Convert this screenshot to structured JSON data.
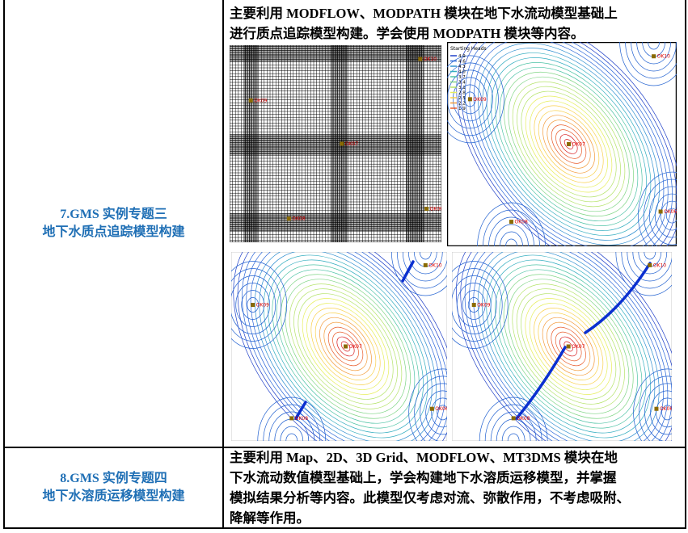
{
  "table": {
    "rows": [
      {
        "topic": [
          "7.GMS 实例专题三",
          "地下水质点追踪模型构建"
        ],
        "description": [
          "主要利用 MODFLOW、MODPATH 模块在地下水流动模型基础上",
          "进行质点追踪模型构建。学会使用 MODPATH 模块等内容。"
        ]
      },
      {
        "topic": [
          "8.GMS 实例专题四",
          "地下水溶质运移模型构建"
        ],
        "description": [
          "主要利用 Map、2D、3D Grid、MODFLOW、MT3DMS 模块在地",
          "下水流动数值模型基础上，学会构建地下水溶质运移模型，并掌握",
          "模拟结果分析等内容。此模型仅考虑对流、弥散作用，不考虑吸附、",
          "降解等作用。"
        ]
      }
    ]
  },
  "figures": {
    "legend_title": "Starting Heads",
    "legend_values": [
      "4.9",
      "4.6",
      "4.3",
      "4.0",
      "3.7",
      "3.4",
      "3.1",
      "2.8",
      "2.5",
      "2.2",
      "1.9"
    ],
    "wells": [
      "OK10",
      "OK09",
      "OK07",
      "OK08",
      "OK06"
    ]
  }
}
